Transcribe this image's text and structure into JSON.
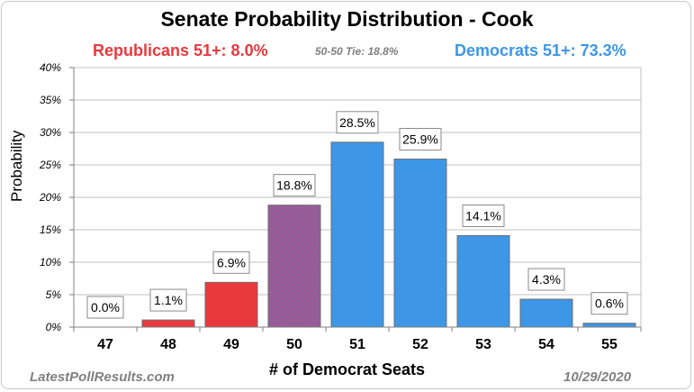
{
  "header": {
    "title": "Senate Probability Distribution - Cook",
    "republicans": "Republicans  51+:   8.0%",
    "tie": "50-50 Tie:  18.8%",
    "democrats": "Democrats  51+:   73.3%"
  },
  "footer": {
    "source": "LatestPollResults.com",
    "date": "10/29/2020"
  },
  "colors": {
    "republican": "#e8393c",
    "democrat": "#3d96e6",
    "tie": "#8a5f9e",
    "grid": "#c0c0c0",
    "label_border": "#8a8a8a"
  },
  "chart_data": {
    "type": "bar",
    "title": "Senate Probability Distribution - Cook",
    "xlabel": "# of Democrat Seats",
    "ylabel": "Probability",
    "ylim": [
      0,
      40
    ],
    "yticks": [
      "0%",
      "5%",
      "10%",
      "15%",
      "20%",
      "25%",
      "30%",
      "35%",
      "40%"
    ],
    "grid": true,
    "categories": [
      "47",
      "48",
      "49",
      "50",
      "51",
      "52",
      "53",
      "54",
      "55"
    ],
    "values": [
      0.0,
      1.1,
      6.9,
      18.8,
      28.5,
      25.9,
      14.1,
      4.3,
      0.6
    ],
    "data_labels": [
      "0.0%",
      "1.1%",
      "6.9%",
      "18.8%",
      "28.5%",
      "25.9%",
      "14.1%",
      "4.3%",
      "0.6%"
    ],
    "bar_colors": [
      "republican",
      "republican",
      "republican",
      "tie",
      "democrat",
      "democrat",
      "democrat",
      "democrat",
      "democrat"
    ]
  }
}
